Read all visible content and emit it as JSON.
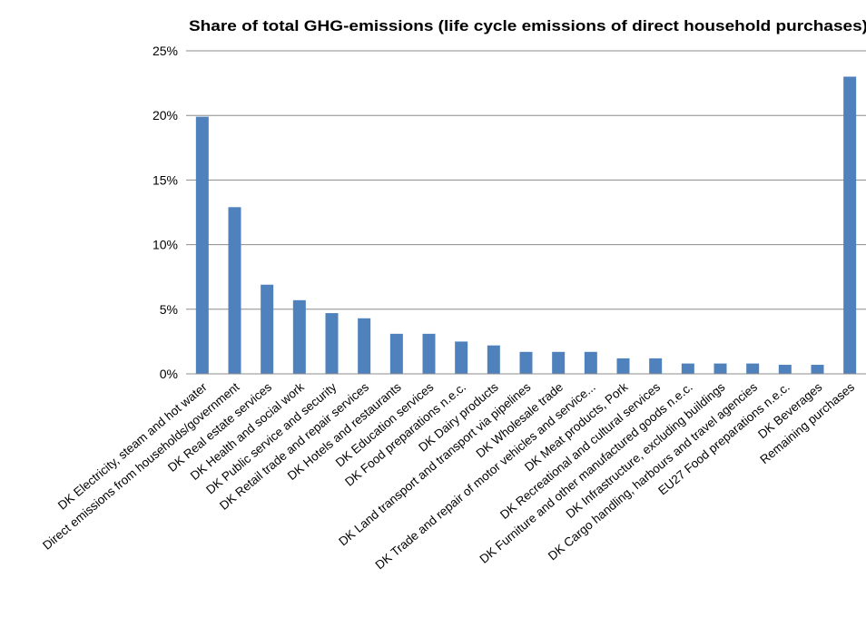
{
  "chart_data": {
    "type": "bar",
    "title": "Share of total GHG-emissions (life cycle emissions of direct household purchases)",
    "xlabel": "",
    "ylabel": "",
    "ylim": [
      0,
      25
    ],
    "yticks": [
      {
        "value": 0,
        "label": "0%"
      },
      {
        "value": 5,
        "label": "5%"
      },
      {
        "value": 10,
        "label": "10%"
      },
      {
        "value": 15,
        "label": "15%"
      },
      {
        "value": 20,
        "label": "20%"
      },
      {
        "value": 25,
        "label": "25%"
      }
    ],
    "grid": true,
    "legend": "none",
    "bar_color": "#4f81bd",
    "categories": [
      "DK Electricity, steam and hot water",
      "Direct emissions from households/government",
      "DK Real estate services",
      "DK Health and social work",
      "DK Public service and security",
      "DK Retail  trade and repair services",
      "DK Hotels and restaurants",
      "DK Education services",
      "DK Food preparations n.e.c.",
      "DK Dairy products",
      "DK Land transport and transport via pipelines",
      "DK Wholesale trade",
      "DK Trade and repair of motor vehicles and service...",
      "DK Meat products, Pork",
      "DK Recreational and cultural services",
      "DK Furniture and other manufactured goods n.e.c.",
      "DK Infrastructure, excluding buildings",
      "DK Cargo handling, harbours and travel agencies",
      "EU27 Food preparations n.e.c.",
      "DK Beverages",
      "Remaining purchases"
    ],
    "values": [
      19.9,
      12.9,
      6.9,
      5.7,
      4.7,
      4.3,
      3.1,
      3.1,
      2.5,
      2.2,
      1.7,
      1.7,
      1.7,
      1.2,
      1.2,
      0.8,
      0.8,
      0.8,
      0.7,
      0.7,
      23.0
    ]
  }
}
